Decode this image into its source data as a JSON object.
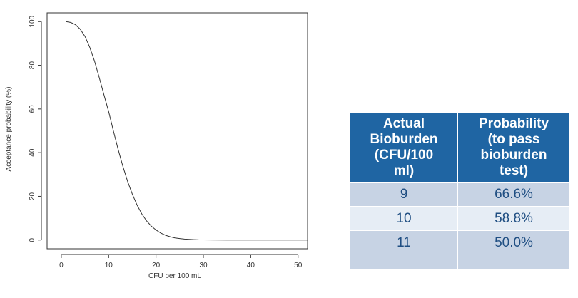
{
  "chart_data": {
    "type": "line",
    "title": "",
    "xlabel": "CFU per 100 mL",
    "ylabel": "Acceptance probability (%)",
    "xlim": [
      -3,
      52
    ],
    "ylim": [
      -4,
      104
    ],
    "x_ticks": [
      0,
      10,
      20,
      30,
      40,
      50
    ],
    "y_ticks": [
      0,
      20,
      40,
      60,
      80,
      100
    ],
    "grid": false,
    "series": [
      {
        "x": [
          1,
          2,
          3,
          4,
          5,
          6,
          7,
          8,
          9,
          10,
          11,
          12,
          13,
          14,
          15,
          16,
          17,
          18,
          19,
          20,
          21,
          22,
          23,
          24,
          25,
          26,
          27,
          28,
          29,
          30,
          32,
          35,
          40,
          45,
          52
        ],
        "values": [
          100,
          99.6,
          98.6,
          96.5,
          93.2,
          88.3,
          82.0,
          74.5,
          66.6,
          58.8,
          50.0,
          41.6,
          33.8,
          26.9,
          21.0,
          16.0,
          12.0,
          8.8,
          6.4,
          4.6,
          3.2,
          2.2,
          1.5,
          1.0,
          0.7,
          0.45,
          0.3,
          0.2,
          0.12,
          0.08,
          0.04,
          0.01,
          0,
          0,
          0
        ],
        "color": "#333333"
      }
    ]
  },
  "table": {
    "headers": [
      "Actual\nBioburden\n(CFU/100\nml)",
      "Probability\n(to pass\nbioburden\ntest)"
    ],
    "rows": [
      [
        "9",
        "66.6%"
      ],
      [
        "10",
        "58.8%"
      ],
      [
        "11",
        "50.0%"
      ]
    ]
  }
}
